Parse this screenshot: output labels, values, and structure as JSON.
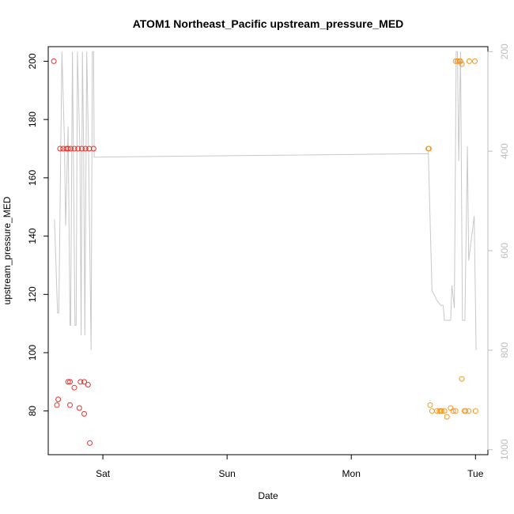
{
  "chart_data": {
    "type": "scatter",
    "title": "ATOM1 Northeast_Pacific upstream_pressure_MED",
    "xlabel": "Date",
    "ylabel": "upstream_pressure_MED",
    "xlim": [
      -0.44,
      3.1
    ],
    "ylim": [
      65,
      205
    ],
    "y_ticks": [
      80,
      100,
      120,
      140,
      160,
      180,
      200
    ],
    "x_ticks": [
      {
        "value": 0,
        "label": "Sat"
      },
      {
        "value": 1,
        "label": "Sun"
      },
      {
        "value": 2,
        "label": "Mon"
      },
      {
        "value": 3,
        "label": "Tue"
      }
    ],
    "right_axis": {
      "label": "",
      "ylim": [
        1010,
        190
      ],
      "ticks": [
        200,
        400,
        600,
        800,
        1000
      ],
      "color": "#bdbdbd"
    },
    "series": [
      {
        "color": "#e8302a",
        "points": [
          [
            -0.395,
            200
          ],
          [
            -0.37,
            82
          ],
          [
            -0.36,
            84
          ],
          [
            -0.345,
            170
          ],
          [
            -0.32,
            170
          ],
          [
            -0.295,
            170
          ],
          [
            -0.28,
            170
          ],
          [
            -0.26,
            170
          ],
          [
            -0.23,
            170
          ],
          [
            -0.2,
            170
          ],
          [
            -0.17,
            170
          ],
          [
            -0.14,
            170
          ],
          [
            -0.11,
            170
          ],
          [
            -0.075,
            170
          ],
          [
            -0.28,
            90
          ],
          [
            -0.265,
            90
          ],
          [
            -0.265,
            82
          ],
          [
            -0.23,
            88
          ],
          [
            -0.18,
            90
          ],
          [
            -0.19,
            81
          ],
          [
            -0.15,
            90
          ],
          [
            -0.15,
            79
          ],
          [
            -0.12,
            89
          ],
          [
            -0.105,
            69
          ]
        ]
      },
      {
        "color": "#f5961e",
        "points": [
          [
            2.62,
            170
          ],
          [
            2.625,
            170
          ],
          [
            2.635,
            82
          ],
          [
            2.65,
            80
          ],
          [
            2.69,
            80
          ],
          [
            2.71,
            80
          ],
          [
            2.72,
            80
          ],
          [
            2.73,
            80
          ],
          [
            2.75,
            80
          ],
          [
            2.77,
            78
          ],
          [
            2.8,
            81
          ],
          [
            2.82,
            80
          ],
          [
            2.84,
            80
          ],
          [
            2.84,
            200
          ],
          [
            2.855,
            200
          ],
          [
            2.87,
            200
          ],
          [
            2.88,
            200
          ],
          [
            2.89,
            199
          ],
          [
            2.89,
            91
          ],
          [
            2.91,
            80
          ],
          [
            2.92,
            80
          ],
          [
            2.945,
            80
          ],
          [
            2.95,
            200
          ],
          [
            2.995,
            200
          ],
          [
            3.0,
            80
          ]
        ]
      }
    ],
    "line_series": {
      "color": "#c8c8c8",
      "axis": "right",
      "points": [
        [
          -0.39,
          537
        ],
        [
          -0.365,
          725
        ],
        [
          -0.355,
          725
        ],
        [
          -0.33,
          200
        ],
        [
          -0.31,
          375
        ],
        [
          -0.3,
          550
        ],
        [
          -0.28,
          350
        ],
        [
          -0.265,
          750
        ],
        [
          -0.26,
          750
        ],
        [
          -0.245,
          200
        ],
        [
          -0.225,
          750
        ],
        [
          -0.215,
          750
        ],
        [
          -0.205,
          200
        ],
        [
          -0.185,
          400
        ],
        [
          -0.175,
          770
        ],
        [
          -0.165,
          200
        ],
        [
          -0.155,
          400
        ],
        [
          -0.145,
          770
        ],
        [
          -0.13,
          200
        ],
        [
          -0.115,
          400
        ],
        [
          -0.095,
          800
        ],
        [
          -0.085,
          200
        ],
        [
          -0.075,
          200
        ],
        [
          -0.07,
          412
        ],
        [
          2.62,
          405
        ],
        [
          2.62,
          400
        ],
        [
          2.65,
          680
        ],
        [
          2.67,
          690
        ],
        [
          2.69,
          700
        ],
        [
          2.72,
          710
        ],
        [
          2.74,
          710
        ],
        [
          2.75,
          740
        ],
        [
          2.8,
          740
        ],
        [
          2.81,
          670
        ],
        [
          2.83,
          715
        ],
        [
          2.845,
          200
        ],
        [
          2.855,
          200
        ],
        [
          2.865,
          420
        ],
        [
          2.88,
          200
        ],
        [
          2.895,
          740
        ],
        [
          2.915,
          740
        ],
        [
          2.935,
          390
        ],
        [
          2.945,
          620
        ],
        [
          2.99,
          530
        ],
        [
          3.005,
          800
        ]
      ]
    }
  }
}
